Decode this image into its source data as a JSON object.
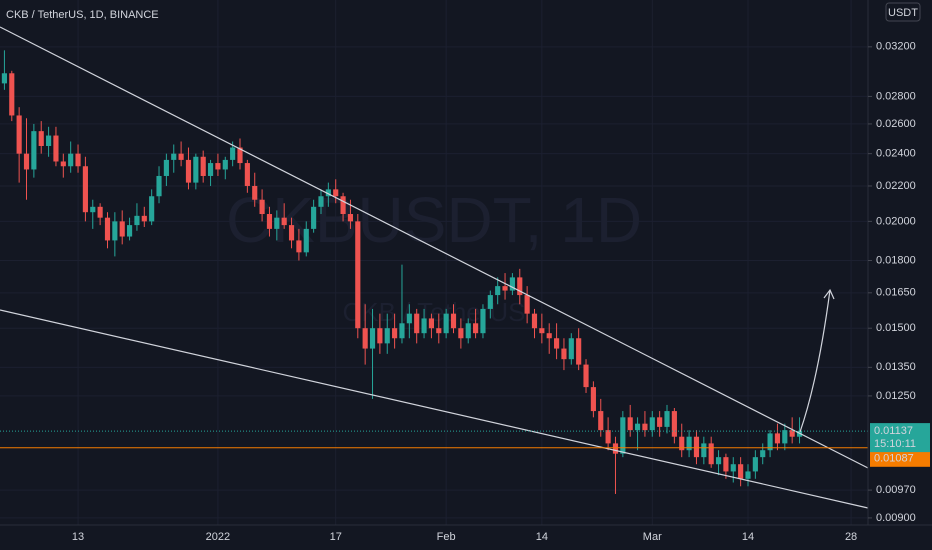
{
  "chart_data": {
    "type": "candlestick",
    "title": "CKB / TetherUS, 1D, BINANCE",
    "watermark": "CKBUSDT, 1D",
    "watermark_subtitle": "CKB / TetherUS",
    "currency": "USDT",
    "log_scale": true,
    "grid": true,
    "up_color": "#26a69a",
    "down_color": "#ef5350",
    "ohlc": [
      [
        0.029,
        0.0317,
        0.0285,
        0.0298
      ],
      [
        0.0298,
        0.03,
        0.0262,
        0.0266
      ],
      [
        0.0266,
        0.0272,
        0.0222,
        0.024
      ],
      [
        0.024,
        0.0264,
        0.0212,
        0.023
      ],
      [
        0.023,
        0.026,
        0.0225,
        0.0255
      ],
      [
        0.0255,
        0.0262,
        0.024,
        0.0245
      ],
      [
        0.0245,
        0.0258,
        0.0238,
        0.0252
      ],
      [
        0.0252,
        0.0258,
        0.0232,
        0.0235
      ],
      [
        0.0235,
        0.024,
        0.0225,
        0.0232
      ],
      [
        0.0232,
        0.0248,
        0.0228,
        0.024
      ],
      [
        0.024,
        0.0246,
        0.0228,
        0.0232
      ],
      [
        0.0232,
        0.0238,
        0.02,
        0.0205
      ],
      [
        0.0205,
        0.0212,
        0.0196,
        0.0208
      ],
      [
        0.0208,
        0.021,
        0.0198,
        0.0202
      ],
      [
        0.0202,
        0.0205,
        0.0186,
        0.019
      ],
      [
        0.019,
        0.0205,
        0.0182,
        0.02
      ],
      [
        0.02,
        0.0206,
        0.0188,
        0.0192
      ],
      [
        0.0192,
        0.0202,
        0.019,
        0.0198
      ],
      [
        0.0198,
        0.021,
        0.0195,
        0.0203
      ],
      [
        0.0203,
        0.0208,
        0.0197,
        0.02
      ],
      [
        0.02,
        0.0218,
        0.0198,
        0.0214
      ],
      [
        0.0214,
        0.0232,
        0.021,
        0.0226
      ],
      [
        0.0226,
        0.024,
        0.022,
        0.0236
      ],
      [
        0.0236,
        0.0246,
        0.0228,
        0.024
      ],
      [
        0.024,
        0.0248,
        0.0232,
        0.0236
      ],
      [
        0.0236,
        0.0244,
        0.0218,
        0.0222
      ],
      [
        0.0222,
        0.024,
        0.0218,
        0.0238
      ],
      [
        0.0238,
        0.0242,
        0.0222,
        0.0226
      ],
      [
        0.0226,
        0.0236,
        0.022,
        0.0234
      ],
      [
        0.0234,
        0.024,
        0.0226,
        0.023
      ],
      [
        0.023,
        0.0238,
        0.0224,
        0.0236
      ],
      [
        0.0236,
        0.0248,
        0.0232,
        0.0244
      ],
      [
        0.0244,
        0.025,
        0.023,
        0.0234
      ],
      [
        0.0234,
        0.0236,
        0.0216,
        0.022
      ],
      [
        0.022,
        0.0228,
        0.0208,
        0.0212
      ],
      [
        0.0212,
        0.0218,
        0.02,
        0.0204
      ],
      [
        0.0204,
        0.0208,
        0.0192,
        0.0196
      ],
      [
        0.0196,
        0.0206,
        0.019,
        0.0202
      ],
      [
        0.0202,
        0.021,
        0.0196,
        0.0198
      ],
      [
        0.0198,
        0.0202,
        0.0186,
        0.019
      ],
      [
        0.019,
        0.0196,
        0.018,
        0.0184
      ],
      [
        0.0184,
        0.02,
        0.0182,
        0.0196
      ],
      [
        0.0196,
        0.0212,
        0.0194,
        0.0208
      ],
      [
        0.0208,
        0.0218,
        0.0204,
        0.0214
      ],
      [
        0.0214,
        0.0222,
        0.0208,
        0.0218
      ],
      [
        0.0218,
        0.0224,
        0.021,
        0.0214
      ],
      [
        0.0214,
        0.0216,
        0.02,
        0.0204
      ],
      [
        0.0204,
        0.0212,
        0.0196,
        0.02
      ],
      [
        0.02,
        0.0204,
        0.0146,
        0.015
      ],
      [
        0.015,
        0.016,
        0.0136,
        0.0142
      ],
      [
        0.0142,
        0.0158,
        0.0124,
        0.015
      ],
      [
        0.015,
        0.0156,
        0.014,
        0.0144
      ],
      [
        0.0144,
        0.0156,
        0.014,
        0.015
      ],
      [
        0.015,
        0.0156,
        0.0142,
        0.0146
      ],
      [
        0.0146,
        0.0178,
        0.0144,
        0.0152
      ],
      [
        0.0152,
        0.016,
        0.0146,
        0.0156
      ],
      [
        0.0156,
        0.0158,
        0.0144,
        0.0148
      ],
      [
        0.0148,
        0.0158,
        0.0146,
        0.0154
      ],
      [
        0.0154,
        0.0156,
        0.0146,
        0.015
      ],
      [
        0.015,
        0.0156,
        0.0144,
        0.0148
      ],
      [
        0.0148,
        0.0158,
        0.0146,
        0.0156
      ],
      [
        0.0156,
        0.016,
        0.0148,
        0.015
      ],
      [
        0.015,
        0.0154,
        0.0142,
        0.0146
      ],
      [
        0.0146,
        0.0154,
        0.0144,
        0.0152
      ],
      [
        0.0152,
        0.0158,
        0.0146,
        0.0148
      ],
      [
        0.0148,
        0.016,
        0.0146,
        0.0158
      ],
      [
        0.0158,
        0.0166,
        0.0154,
        0.0164
      ],
      [
        0.0164,
        0.0172,
        0.016,
        0.0168
      ],
      [
        0.0168,
        0.0174,
        0.0162,
        0.0166
      ],
      [
        0.0166,
        0.0174,
        0.0164,
        0.0172
      ],
      [
        0.0172,
        0.0176,
        0.016,
        0.0164
      ],
      [
        0.0164,
        0.0168,
        0.0152,
        0.0156
      ],
      [
        0.0156,
        0.0158,
        0.0146,
        0.015
      ],
      [
        0.015,
        0.0156,
        0.0144,
        0.0148
      ],
      [
        0.0148,
        0.0152,
        0.014,
        0.0146
      ],
      [
        0.0146,
        0.0152,
        0.0138,
        0.0142
      ],
      [
        0.0142,
        0.0146,
        0.0134,
        0.0138
      ],
      [
        0.0138,
        0.0148,
        0.0136,
        0.0146
      ],
      [
        0.0146,
        0.015,
        0.0134,
        0.0136
      ],
      [
        0.0136,
        0.0138,
        0.0126,
        0.0128
      ],
      [
        0.0128,
        0.013,
        0.0118,
        0.012
      ],
      [
        0.012,
        0.0124,
        0.0112,
        0.0114
      ],
      [
        0.0114,
        0.0118,
        0.0108,
        0.011
      ],
      [
        0.011,
        0.0112,
        0.0096,
        0.0107
      ],
      [
        0.0107,
        0.012,
        0.0106,
        0.0118
      ],
      [
        0.0118,
        0.0122,
        0.0112,
        0.0114
      ],
      [
        0.0114,
        0.0118,
        0.0108,
        0.0116
      ],
      [
        0.0116,
        0.012,
        0.0112,
        0.0114
      ],
      [
        0.0114,
        0.012,
        0.0112,
        0.0118
      ],
      [
        0.0118,
        0.012,
        0.0112,
        0.0115
      ],
      [
        0.0115,
        0.0122,
        0.0113,
        0.012
      ],
      [
        0.012,
        0.0121,
        0.011,
        0.0112
      ],
      [
        0.0112,
        0.0116,
        0.0106,
        0.0108
      ],
      [
        0.0108,
        0.0114,
        0.0106,
        0.0112
      ],
      [
        0.0112,
        0.0114,
        0.0104,
        0.0106
      ],
      [
        0.0106,
        0.0112,
        0.0104,
        0.011
      ],
      [
        0.011,
        0.0112,
        0.0103,
        0.0104
      ],
      [
        0.0104,
        0.0108,
        0.0101,
        0.0106
      ],
      [
        0.0106,
        0.0107,
        0.01,
        0.0102
      ],
      [
        0.0102,
        0.0106,
        0.0099,
        0.0104
      ],
      [
        0.0104,
        0.0106,
        0.0098,
        0.01
      ],
      [
        0.01,
        0.0104,
        0.0098,
        0.0102
      ],
      [
        0.0102,
        0.0108,
        0.01,
        0.0106
      ],
      [
        0.0106,
        0.011,
        0.0104,
        0.0108
      ],
      [
        0.0108,
        0.0114,
        0.0106,
        0.0113
      ],
      [
        0.0113,
        0.0116,
        0.0108,
        0.011
      ],
      [
        0.011,
        0.0116,
        0.0108,
        0.0114
      ],
      [
        0.0114,
        0.0118,
        0.011,
        0.0112
      ],
      [
        0.0112,
        0.0118,
        0.011,
        0.01137
      ]
    ],
    "xlim": [
      -0.6,
      117.3
    ],
    "xticks": [
      {
        "value": 10,
        "label": "13"
      },
      {
        "value": 29,
        "label": "2022"
      },
      {
        "value": 45,
        "label": "17"
      },
      {
        "value": 60,
        "label": "Feb"
      },
      {
        "value": 73,
        "label": "14"
      },
      {
        "value": 88,
        "label": "Mar"
      },
      {
        "value": 101,
        "label": "14"
      },
      {
        "value": 115,
        "label": "28"
      }
    ],
    "ylim": [
      0.00883,
      0.0363
    ],
    "yticks": [
      {
        "value": 0.032,
        "label": "0.03200"
      },
      {
        "value": 0.028,
        "label": "0.02800"
      },
      {
        "value": 0.026,
        "label": "0.02600"
      },
      {
        "value": 0.024,
        "label": "0.02400"
      },
      {
        "value": 0.022,
        "label": "0.02200"
      },
      {
        "value": 0.02,
        "label": "0.02000"
      },
      {
        "value": 0.018,
        "label": "0.01800"
      },
      {
        "value": 0.0165,
        "label": "0.01650"
      },
      {
        "value": 0.015,
        "label": "0.01500"
      },
      {
        "value": 0.0135,
        "label": "0.01350"
      },
      {
        "value": 0.0125,
        "label": "0.01250"
      },
      {
        "value": 0.0097,
        "label": "0.00970"
      },
      {
        "value": 0.009,
        "label": "0.00900"
      }
    ],
    "last_price": {
      "value": 0.01137,
      "label": "0.01137"
    },
    "countdown": "15:10:11",
    "price_line": {
      "value": 0.01087,
      "label": "0.01087",
      "color": "#f57c00"
    }
  }
}
